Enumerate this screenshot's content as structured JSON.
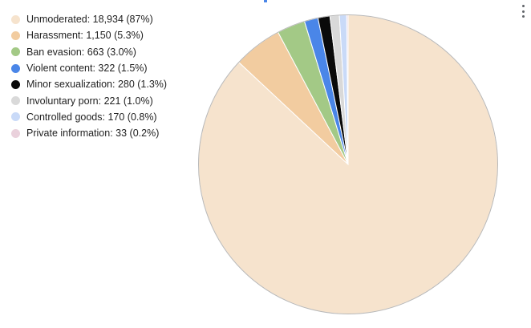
{
  "chart_data": {
    "type": "pie",
    "title": "",
    "legend_position": "left",
    "slices": [
      {
        "label": "Unmoderated",
        "value": 18934,
        "percent": 87,
        "color": "#f6e3cd",
        "legend_text": "Unmoderated: 18,934 (87%)"
      },
      {
        "label": "Harassment",
        "value": 1150,
        "percent": 5.3,
        "color": "#f2cca0",
        "legend_text": "Harassment: 1,150 (5.3%)"
      },
      {
        "label": "Ban evasion",
        "value": 663,
        "percent": 3.0,
        "color": "#a3c986",
        "legend_text": "Ban evasion: 663 (3.0%)"
      },
      {
        "label": "Violent content",
        "value": 322,
        "percent": 1.5,
        "color": "#4a86e8",
        "legend_text": "Violent content: 322 (1.5%)"
      },
      {
        "label": "Minor sexualization",
        "value": 280,
        "percent": 1.3,
        "color": "#0a0a0a",
        "legend_text": "Minor sexualization: 280 (1.3%)"
      },
      {
        "label": "Involuntary porn",
        "value": 221,
        "percent": 1.0,
        "color": "#d9d9d9",
        "legend_text": "Involuntary porn: 221 (1.0%)"
      },
      {
        "label": "Controlled goods",
        "value": 170,
        "percent": 0.8,
        "color": "#c9daf8",
        "legend_text": "Controlled goods: 170 (0.8%)"
      },
      {
        "label": "Private information",
        "value": 33,
        "percent": 0.2,
        "color": "#ead1dc",
        "legend_text": "Private information: 33 (0.2%)"
      }
    ]
  },
  "colors": {
    "slice_border": "#b8b8b8",
    "slice_separator": "#ffffff",
    "legend_text": "#222222",
    "menu_dots": "#5f6368"
  },
  "icons": {
    "menu": "more-vert-icon"
  }
}
